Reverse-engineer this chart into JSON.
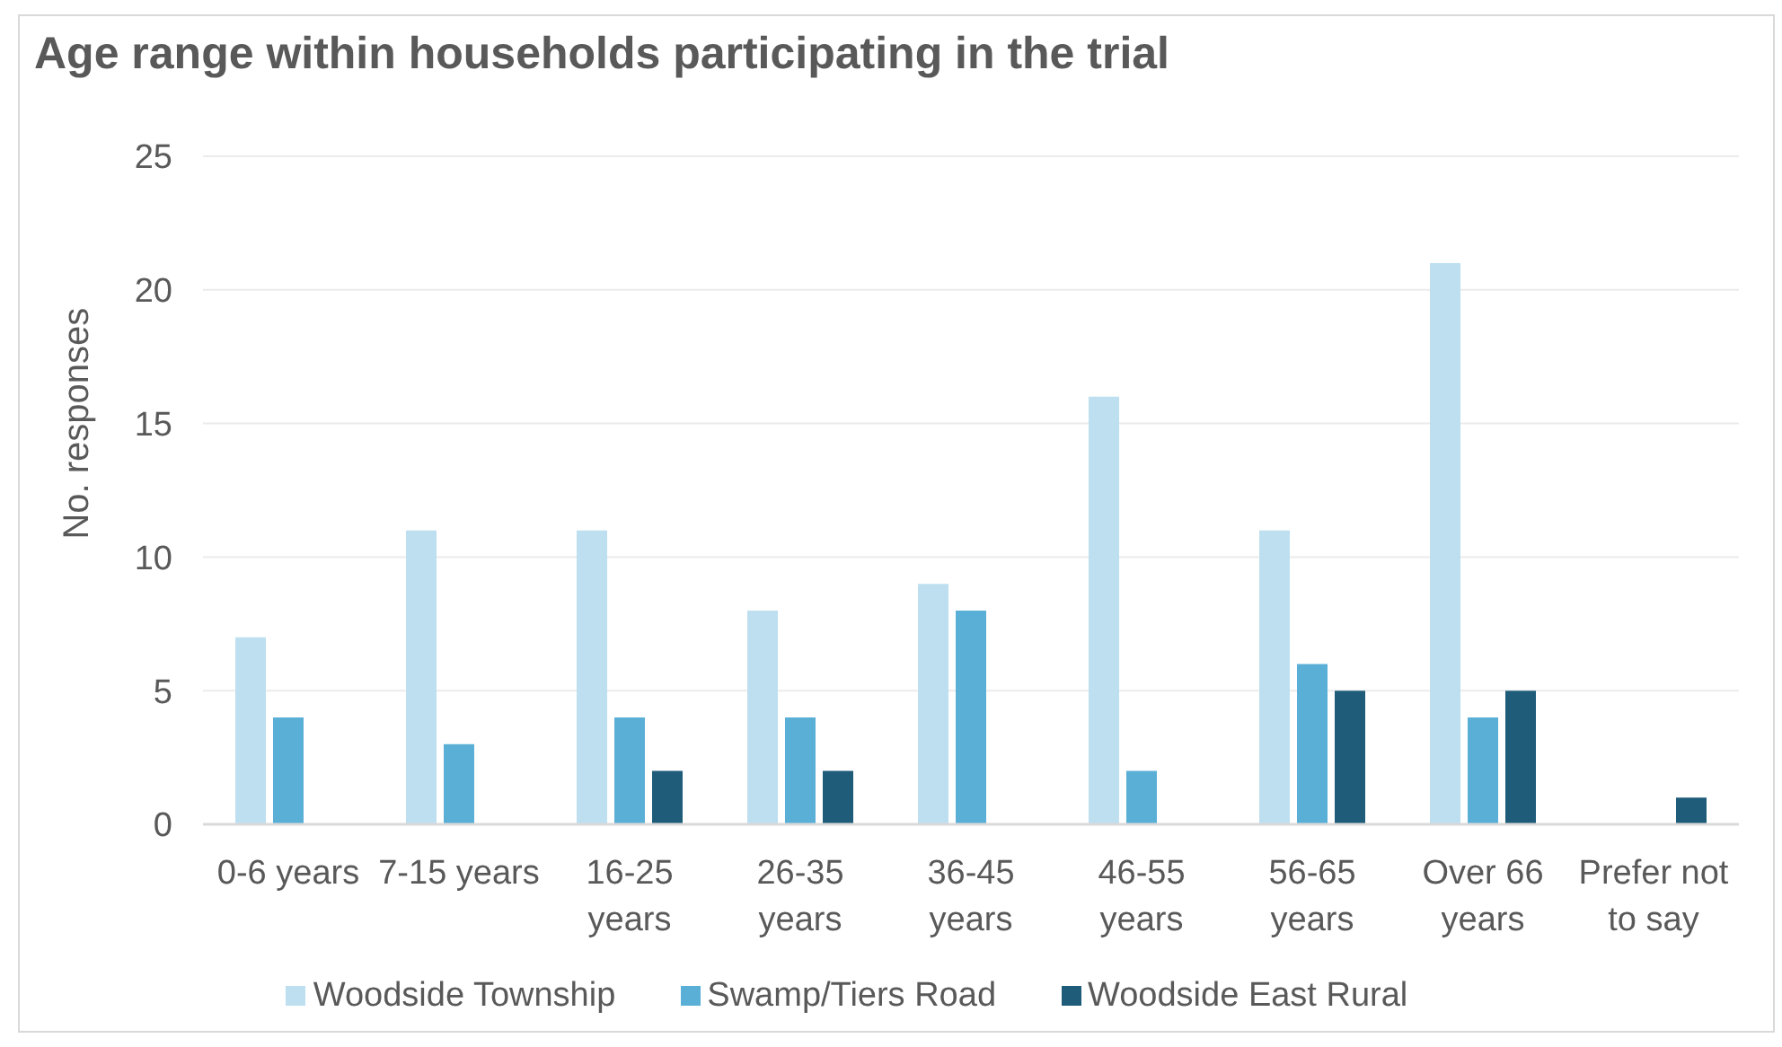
{
  "chart_data": {
    "type": "bar",
    "title": "Age range within households participating in the trial",
    "ylabel": "No. responses",
    "categories": [
      "0-6 years",
      "7-15 years",
      "16-25 years",
      "26-35 years",
      "36-45 years",
      "46-55 years",
      "56-65 years",
      "Over 66 years",
      "Prefer not to say"
    ],
    "series": [
      {
        "name": "Woodside Township",
        "color": "#bddff0",
        "values": [
          7,
          11,
          11,
          8,
          9,
          16,
          11,
          21,
          0
        ]
      },
      {
        "name": "Swamp/Tiers Road",
        "color": "#5aafd7",
        "values": [
          4,
          3,
          4,
          4,
          8,
          2,
          6,
          4,
          0
        ]
      },
      {
        "name": "Woodside East Rural",
        "color": "#1f5c7a",
        "values": [
          0,
          0,
          2,
          2,
          0,
          0,
          5,
          5,
          1
        ]
      }
    ],
    "ylim": [
      0,
      25
    ],
    "yticks": [
      0,
      5,
      10,
      15,
      20,
      25
    ],
    "grid": "y",
    "legend": "bottom"
  }
}
